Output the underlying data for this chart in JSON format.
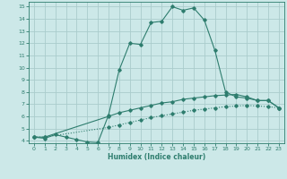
{
  "xlabel": "Humidex (Indice chaleur)",
  "bg_color": "#cce8e8",
  "grid_color": "#aacccc",
  "line_color": "#2e7d6e",
  "xlim": [
    -0.5,
    23.5
  ],
  "ylim": [
    3.8,
    15.4
  ],
  "xticks": [
    0,
    1,
    2,
    3,
    4,
    5,
    6,
    7,
    8,
    9,
    10,
    11,
    12,
    13,
    14,
    15,
    16,
    17,
    18,
    19,
    20,
    21,
    22,
    23
  ],
  "yticks": [
    4,
    5,
    6,
    7,
    8,
    9,
    10,
    11,
    12,
    13,
    14,
    15
  ],
  "line1_x": [
    0,
    1,
    2,
    3,
    4,
    5,
    6,
    7,
    8,
    9,
    10,
    11,
    12,
    13,
    14,
    15,
    16,
    17,
    18,
    19,
    20,
    21,
    22,
    23
  ],
  "line1_y": [
    4.3,
    4.2,
    4.5,
    4.3,
    4.1,
    3.9,
    3.85,
    6.1,
    9.8,
    12.0,
    11.9,
    13.7,
    13.8,
    15.0,
    14.7,
    14.9,
    13.9,
    11.4,
    8.0,
    7.6,
    7.5,
    7.3,
    7.3,
    6.7
  ],
  "line2_x": [
    0,
    1,
    7,
    8,
    9,
    10,
    11,
    12,
    13,
    14,
    15,
    16,
    17,
    18,
    19,
    20,
    21,
    22,
    23
  ],
  "line2_y": [
    4.3,
    4.3,
    6.0,
    6.3,
    6.5,
    6.7,
    6.9,
    7.1,
    7.2,
    7.4,
    7.5,
    7.6,
    7.7,
    7.75,
    7.8,
    7.6,
    7.3,
    7.3,
    6.7
  ],
  "line3_x": [
    0,
    1,
    7,
    8,
    9,
    10,
    11,
    12,
    13,
    14,
    15,
    16,
    17,
    18,
    19,
    20,
    21,
    22,
    23
  ],
  "line3_y": [
    4.3,
    4.3,
    5.1,
    5.3,
    5.5,
    5.7,
    5.9,
    6.05,
    6.2,
    6.35,
    6.5,
    6.6,
    6.7,
    6.8,
    6.85,
    6.9,
    6.85,
    6.8,
    6.7
  ]
}
